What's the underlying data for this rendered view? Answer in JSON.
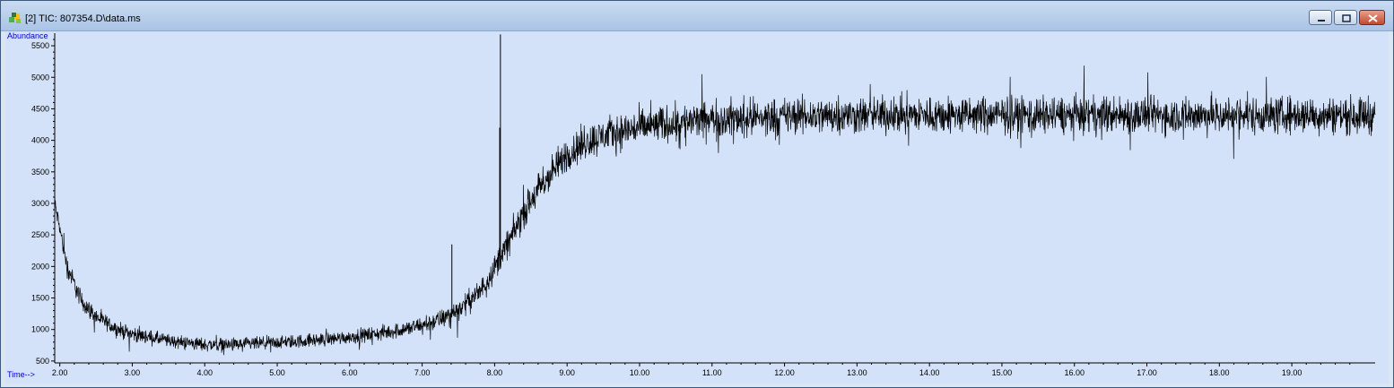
{
  "window": {
    "title": "[2] TIC: 807354.D\\data.ms"
  },
  "colors": {
    "background": "#d3e2f8",
    "trace": "#000000",
    "axis": "#000000",
    "label": "#0000cc"
  },
  "icons": [
    "app-icon",
    "minimize-icon",
    "maximize-icon",
    "close-icon"
  ],
  "chart_data": {
    "type": "line",
    "title": "TIC: 807354.D\\data.ms",
    "ylabel": "Abundance",
    "xlabel": "Time-->",
    "xlim": [
      1.93,
      20.15
    ],
    "ylim": [
      470,
      5700
    ],
    "xticks": [
      "2.00",
      "3.00",
      "4.00",
      "5.00",
      "6.00",
      "7.00",
      "8.00",
      "9.00",
      "10.00",
      "11.00",
      "12.00",
      "13.00",
      "14.00",
      "15.00",
      "16.00",
      "17.00",
      "18.00",
      "19.00"
    ],
    "yticks": [
      "500",
      "1000",
      "1500",
      "2000",
      "2500",
      "3000",
      "3500",
      "4000",
      "4500",
      "5000",
      "5500"
    ],
    "baseline_profile": {
      "x": [
        1.93,
        2.0,
        2.1,
        2.3,
        2.5,
        2.8,
        3.0,
        3.5,
        4.0,
        4.5,
        5.0,
        5.5,
        6.0,
        6.5,
        7.0,
        7.3,
        7.5,
        7.8,
        8.0,
        8.2,
        8.4,
        8.6,
        8.8,
        9.0,
        9.3,
        9.6,
        10.0,
        10.5,
        11.0,
        12.0,
        13.0,
        14.0,
        15.0,
        16.0,
        17.0,
        18.0,
        19.0,
        20.15
      ],
      "y": [
        3000,
        2600,
        2000,
        1450,
        1200,
        1000,
        930,
        820,
        760,
        760,
        790,
        830,
        880,
        950,
        1060,
        1180,
        1320,
        1600,
        1980,
        2400,
        2850,
        3200,
        3500,
        3780,
        3990,
        4110,
        4200,
        4280,
        4330,
        4380,
        4400,
        4400,
        4400,
        4400,
        4400,
        4400,
        4400,
        4400
      ],
      "noise_amplitude": [
        120,
        120,
        150,
        140,
        120,
        110,
        110,
        100,
        100,
        100,
        100,
        100,
        100,
        110,
        130,
        140,
        150,
        170,
        190,
        210,
        230,
        240,
        250,
        260,
        260,
        260,
        270,
        270,
        270,
        270,
        270,
        270,
        270,
        270,
        270,
        270,
        270,
        270
      ]
    },
    "spikes": [
      {
        "x": 7.41,
        "y": 2350
      },
      {
        "x": 8.08,
        "y": 5680
      },
      {
        "x": 8.07,
        "y": 4200
      }
    ]
  }
}
